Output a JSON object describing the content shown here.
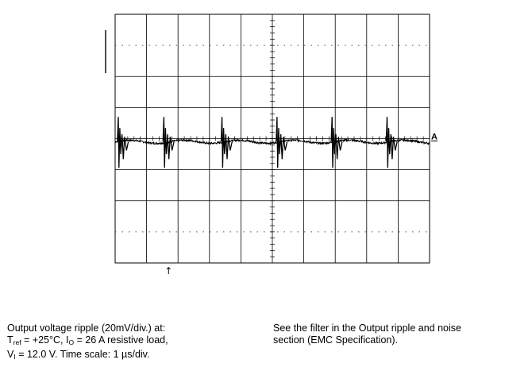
{
  "chart_data": {
    "type": "line",
    "title": "",
    "xlabel": "",
    "ylabel": "",
    "x_divisions": 10,
    "y_divisions": 8,
    "xlim": [
      0,
      10
    ],
    "ylim": [
      -4,
      4
    ],
    "time_scale_per_div": "1 µs/div.",
    "voltage_scale_per_div": "20mV/div.",
    "channel_label": "A",
    "trigger_marker": "↑",
    "trigger_position_div": 1.7,
    "baseline_div": -0.1,
    "spike_times_div": [
      0.1,
      1.55,
      3.4,
      5.15,
      6.9,
      8.65
    ],
    "spike_amplitude_div": 0.8,
    "grid": true,
    "colors": {
      "trace": "#000000",
      "grid": "#000000",
      "dotted_grid": "#555555"
    }
  },
  "caption": {
    "left": {
      "line1": "Output voltage ripple (20mV/div.) at:",
      "line2_prefix": "T",
      "line2_sub1": "ref",
      "line2_mid": " = +25°C, I",
      "line2_sub2": "O",
      "line2_suffix": " = 26 A resistive load,",
      "line3_prefix": "V",
      "line3_sub": "I",
      "line3_suffix": " = 12.0 V. Time scale: 1 µs/div."
    },
    "right": {
      "line1": "See the filter in the Output ripple and noise",
      "line2": "section (EMC Specification)."
    }
  }
}
